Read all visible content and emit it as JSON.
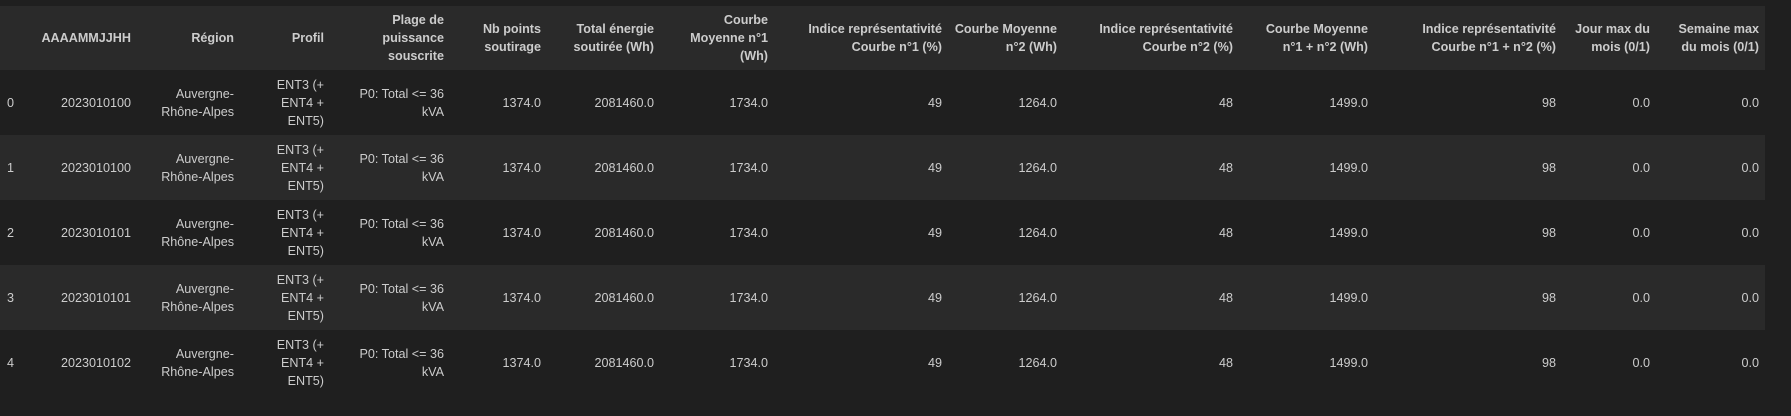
{
  "table": {
    "columns": [
      "AAAAMMJJHH",
      "Région",
      "Profil",
      "Plage de puissance souscrite",
      "Nb points soutirage",
      "Total énergie soutirée (Wh)",
      "Courbe Moyenne n°1 (Wh)",
      "Indice représentativité Courbe n°1 (%)",
      "Courbe Moyenne n°2 (Wh)",
      "Indice représentativité Courbe n°2 (%)",
      "Courbe Moyenne n°1 + n°2 (Wh)",
      "Indice représentativité Courbe n°1 + n°2 (%)",
      "Jour max du mois (0/1)",
      "Semaine max du mois (0/1)"
    ],
    "rows": [
      {
        "index": "0",
        "cells": [
          "2023010100",
          "Auvergne-Rhône-Alpes",
          "ENT3 (+ ENT4 + ENT5)",
          "P0: Total <= 36 kVA",
          "1374.0",
          "2081460.0",
          "1734.0",
          "49",
          "1264.0",
          "48",
          "1499.0",
          "98",
          "0.0",
          "0.0"
        ]
      },
      {
        "index": "1",
        "cells": [
          "2023010100",
          "Auvergne-Rhône-Alpes",
          "ENT3 (+ ENT4 + ENT5)",
          "P0: Total <= 36 kVA",
          "1374.0",
          "2081460.0",
          "1734.0",
          "49",
          "1264.0",
          "48",
          "1499.0",
          "98",
          "0.0",
          "0.0"
        ]
      },
      {
        "index": "2",
        "cells": [
          "2023010101",
          "Auvergne-Rhône-Alpes",
          "ENT3 (+ ENT4 + ENT5)",
          "P0: Total <= 36 kVA",
          "1374.0",
          "2081460.0",
          "1734.0",
          "49",
          "1264.0",
          "48",
          "1499.0",
          "98",
          "0.0",
          "0.0"
        ]
      },
      {
        "index": "3",
        "cells": [
          "2023010101",
          "Auvergne-Rhône-Alpes",
          "ENT3 (+ ENT4 + ENT5)",
          "P0: Total <= 36 kVA",
          "1374.0",
          "2081460.0",
          "1734.0",
          "49",
          "1264.0",
          "48",
          "1499.0",
          "98",
          "0.0",
          "0.0"
        ]
      },
      {
        "index": "4",
        "cells": [
          "2023010102",
          "Auvergne-Rhône-Alpes",
          "ENT3 (+ ENT4 + ENT5)",
          "P0: Total <= 36 kVA",
          "1374.0",
          "2081460.0",
          "1734.0",
          "49",
          "1264.0",
          "48",
          "1499.0",
          "98",
          "0.0",
          "0.0"
        ]
      }
    ]
  },
  "colors": {
    "background": "#1f1f1f",
    "header_background": "#2a2a2a",
    "stripe_background": "#2a2a2a",
    "text": "#cccccc"
  }
}
